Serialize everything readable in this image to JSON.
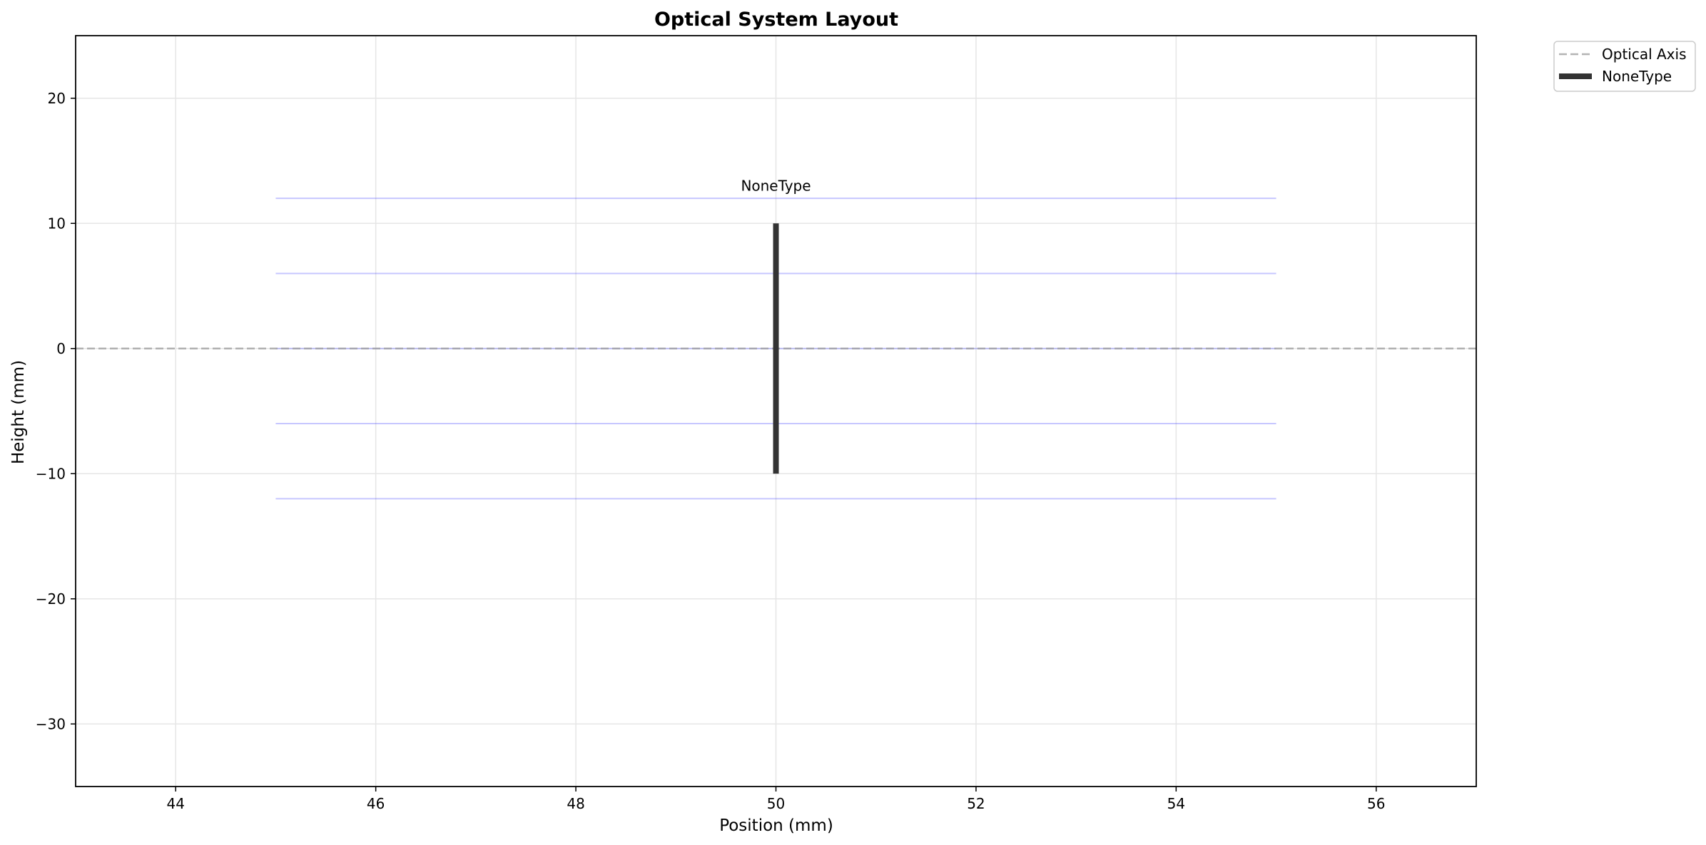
{
  "chart_data": {
    "type": "line",
    "title": "Optical System Layout",
    "xlabel": "Position (mm)",
    "ylabel": "Height (mm)",
    "xlim": [
      43,
      57
    ],
    "ylim": [
      -35,
      25
    ],
    "xticks": [
      44,
      46,
      48,
      50,
      52,
      54,
      56
    ],
    "yticks": [
      -30,
      -20,
      -10,
      0,
      10,
      20
    ],
    "xtick_labels": [
      "44",
      "46",
      "48",
      "50",
      "52",
      "54",
      "56"
    ],
    "ytick_labels": [
      "−30",
      "−20",
      "−10",
      "0",
      "10",
      "20"
    ],
    "grid": true,
    "optical_axis": {
      "name": "Optical Axis",
      "y": 0,
      "color": "#999999",
      "style": "dashed"
    },
    "rays": {
      "color": "#0000ff",
      "x_start": 45,
      "x_end": 55,
      "heights": [
        12,
        6,
        0,
        -6,
        -12
      ]
    },
    "elements": [
      {
        "name": "NoneType",
        "x": 50,
        "y_min": -10,
        "y_max": 10,
        "color": "#333333",
        "label": "NoneType",
        "label_y": 12.6
      }
    ],
    "legend": {
      "placement": "outside-top-right",
      "entries": [
        {
          "label": "Optical Axis",
          "style": "dashed",
          "color": "#999999"
        },
        {
          "label": "NoneType",
          "style": "thick-solid",
          "color": "#333333"
        }
      ]
    }
  }
}
